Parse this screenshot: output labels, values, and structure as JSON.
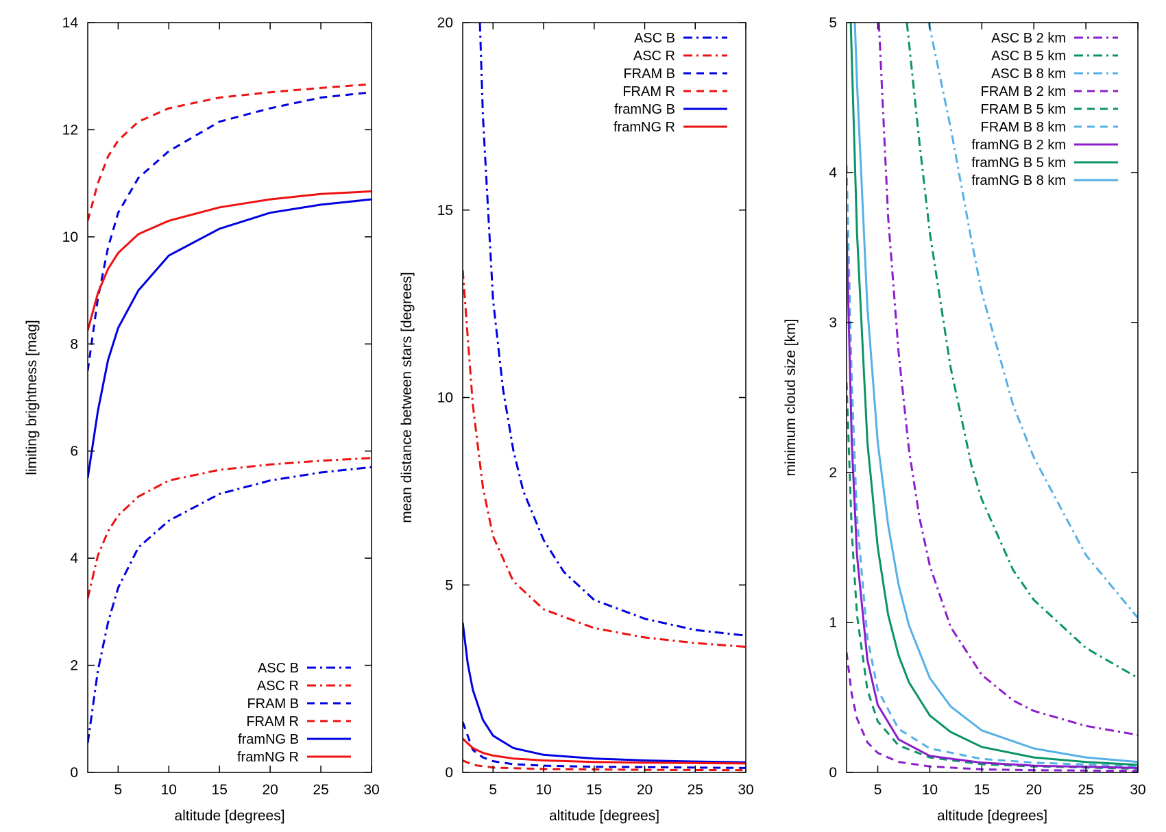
{
  "colors": {
    "blue": "#0000e0",
    "red": "#ee1111",
    "purple": "#8a1ecc",
    "green": "#0a9466",
    "lightblue": "#55b0e6",
    "axis": "#000000"
  },
  "chart_data": [
    {
      "type": "line",
      "title": "",
      "xlabel": "altitude [degrees]",
      "ylabel": "limiting brightness [mag]",
      "xlim": [
        2,
        30
      ],
      "ylim": [
        0,
        14
      ],
      "xticks": [
        5,
        10,
        15,
        20,
        25,
        30
      ],
      "yticks": [
        0,
        2,
        4,
        6,
        8,
        10,
        12,
        14
      ],
      "grid": false,
      "legend_position": "bottom-right",
      "series": [
        {
          "name": "ASC B",
          "color": "blue",
          "dash": "dashdot",
          "points": [
            [
              2,
              0.55
            ],
            [
              3,
              1.9
            ],
            [
              4,
              2.8
            ],
            [
              5,
              3.45
            ],
            [
              7,
              4.2
            ],
            [
              10,
              4.7
            ],
            [
              15,
              5.2
            ],
            [
              20,
              5.45
            ],
            [
              25,
              5.6
            ],
            [
              30,
              5.7
            ]
          ]
        },
        {
          "name": "ASC R",
          "color": "red",
          "dash": "dashdot",
          "points": [
            [
              2,
              3.25
            ],
            [
              3,
              4.05
            ],
            [
              4,
              4.5
            ],
            [
              5,
              4.8
            ],
            [
              7,
              5.15
            ],
            [
              10,
              5.45
            ],
            [
              15,
              5.65
            ],
            [
              20,
              5.75
            ],
            [
              25,
              5.82
            ],
            [
              30,
              5.87
            ]
          ]
        },
        {
          "name": "FRAM B",
          "color": "blue",
          "dash": "dash",
          "points": [
            [
              2,
              7.5
            ],
            [
              3,
              8.85
            ],
            [
              4,
              9.8
            ],
            [
              5,
              10.45
            ],
            [
              7,
              11.1
            ],
            [
              10,
              11.6
            ],
            [
              15,
              12.15
            ],
            [
              20,
              12.4
            ],
            [
              25,
              12.6
            ],
            [
              30,
              12.7
            ]
          ]
        },
        {
          "name": "FRAM R",
          "color": "red",
          "dash": "dash",
          "points": [
            [
              2,
              10.3
            ],
            [
              3,
              11.0
            ],
            [
              4,
              11.5
            ],
            [
              5,
              11.8
            ],
            [
              7,
              12.15
            ],
            [
              10,
              12.4
            ],
            [
              15,
              12.6
            ],
            [
              20,
              12.7
            ],
            [
              25,
              12.78
            ],
            [
              30,
              12.85
            ]
          ]
        },
        {
          "name": "framNG B",
          "color": "blue",
          "dash": "solid",
          "points": [
            [
              2,
              5.5
            ],
            [
              3,
              6.75
            ],
            [
              4,
              7.7
            ],
            [
              5,
              8.3
            ],
            [
              7,
              9.0
            ],
            [
              10,
              9.65
            ],
            [
              15,
              10.15
            ],
            [
              20,
              10.45
            ],
            [
              25,
              10.6
            ],
            [
              30,
              10.7
            ]
          ]
        },
        {
          "name": "framNG R",
          "color": "red",
          "dash": "solid",
          "points": [
            [
              2,
              8.25
            ],
            [
              3,
              8.95
            ],
            [
              4,
              9.4
            ],
            [
              5,
              9.7
            ],
            [
              7,
              10.05
            ],
            [
              10,
              10.3
            ],
            [
              15,
              10.55
            ],
            [
              20,
              10.7
            ],
            [
              25,
              10.8
            ],
            [
              30,
              10.85
            ]
          ]
        }
      ]
    },
    {
      "type": "line",
      "title": "",
      "xlabel": "altitude [degrees]",
      "ylabel": "mean distance between stars [degrees]",
      "xlim": [
        2,
        30
      ],
      "ylim": [
        0,
        20
      ],
      "xticks": [
        5,
        10,
        15,
        20,
        25,
        30
      ],
      "yticks": [
        0,
        5,
        10,
        15,
        20
      ],
      "grid": false,
      "legend_position": "top-right",
      "series": [
        {
          "name": "ASC B",
          "color": "blue",
          "dash": "dashdot",
          "points": [
            [
              3.7,
              20
            ],
            [
              4,
              17.5
            ],
            [
              5,
              12.6
            ],
            [
              6,
              10.2
            ],
            [
              7,
              8.6
            ],
            [
              8,
              7.5
            ],
            [
              10,
              6.2
            ],
            [
              12,
              5.35
            ],
            [
              15,
              4.6
            ],
            [
              20,
              4.1
            ],
            [
              25,
              3.8
            ],
            [
              30,
              3.65
            ]
          ]
        },
        {
          "name": "ASC R",
          "color": "red",
          "dash": "dashdot",
          "points": [
            [
              2,
              13.4
            ],
            [
              3,
              9.8
            ],
            [
              4,
              7.6
            ],
            [
              5,
              6.3
            ],
            [
              7,
              5.1
            ],
            [
              10,
              4.35
            ],
            [
              15,
              3.85
            ],
            [
              20,
              3.6
            ],
            [
              25,
              3.45
            ],
            [
              30,
              3.35
            ]
          ]
        },
        {
          "name": "FRAM B",
          "color": "blue",
          "dash": "dash",
          "points": [
            [
              2,
              1.35
            ],
            [
              3,
              0.6
            ],
            [
              4,
              0.4
            ],
            [
              5,
              0.3
            ],
            [
              7,
              0.22
            ],
            [
              10,
              0.18
            ],
            [
              15,
              0.15
            ],
            [
              20,
              0.14
            ],
            [
              25,
              0.13
            ],
            [
              30,
              0.12
            ]
          ]
        },
        {
          "name": "FRAM R",
          "color": "red",
          "dash": "dash",
          "points": [
            [
              2,
              0.32
            ],
            [
              3,
              0.2
            ],
            [
              5,
              0.13
            ],
            [
              10,
              0.09
            ],
            [
              20,
              0.07
            ],
            [
              30,
              0.06
            ]
          ]
        },
        {
          "name": "framNG B",
          "color": "blue",
          "dash": "solid",
          "points": [
            [
              2,
              4.0
            ],
            [
              2.5,
              2.9
            ],
            [
              3,
              2.2
            ],
            [
              4,
              1.4
            ],
            [
              5,
              0.98
            ],
            [
              7,
              0.65
            ],
            [
              10,
              0.47
            ],
            [
              15,
              0.37
            ],
            [
              20,
              0.32
            ],
            [
              25,
              0.29
            ],
            [
              30,
              0.27
            ]
          ]
        },
        {
          "name": "framNG R",
          "color": "red",
          "dash": "solid",
          "points": [
            [
              2,
              0.9
            ],
            [
              3,
              0.65
            ],
            [
              4,
              0.52
            ],
            [
              5,
              0.45
            ],
            [
              7,
              0.37
            ],
            [
              10,
              0.32
            ],
            [
              15,
              0.28
            ],
            [
              20,
              0.26
            ],
            [
              25,
              0.25
            ],
            [
              30,
              0.24
            ]
          ]
        }
      ]
    },
    {
      "type": "line",
      "title": "",
      "xlabel": "altitude [degrees]",
      "ylabel": "minimum cloud size [km]",
      "xlim": [
        2,
        30
      ],
      "ylim": [
        0,
        5
      ],
      "xticks": [
        5,
        10,
        15,
        20,
        25,
        30
      ],
      "yticks": [
        0,
        1,
        2,
        3,
        4,
        5
      ],
      "grid": false,
      "legend_position": "top-right",
      "series": [
        {
          "name": "ASC B 2 km",
          "color": "purple",
          "dash": "dashdot",
          "points": [
            [
              5.1,
              5
            ],
            [
              6,
              3.7
            ],
            [
              7,
              2.8
            ],
            [
              8,
              2.15
            ],
            [
              9,
              1.7
            ],
            [
              10,
              1.38
            ],
            [
              12,
              0.97
            ],
            [
              15,
              0.65
            ],
            [
              18,
              0.48
            ],
            [
              20,
              0.41
            ],
            [
              25,
              0.31
            ],
            [
              30,
              0.25
            ]
          ]
        },
        {
          "name": "ASC B 5 km",
          "color": "green",
          "dash": "dashdot",
          "points": [
            [
              7.8,
              5
            ],
            [
              9,
              4.2
            ],
            [
              10,
              3.6
            ],
            [
              12,
              2.7
            ],
            [
              14,
              2.05
            ],
            [
              15,
              1.82
            ],
            [
              18,
              1.35
            ],
            [
              20,
              1.15
            ],
            [
              25,
              0.83
            ],
            [
              30,
              0.63
            ]
          ]
        },
        {
          "name": "ASC B 8 km",
          "color": "lightblue",
          "dash": "dashdot",
          "points": [
            [
              9.9,
              5
            ],
            [
              12,
              4.3
            ],
            [
              14,
              3.55
            ],
            [
              15,
              3.2
            ],
            [
              18,
              2.45
            ],
            [
              20,
              2.1
            ],
            [
              25,
              1.45
            ],
            [
              30,
              1.03
            ]
          ]
        },
        {
          "name": "FRAM B 2 km",
          "color": "purple",
          "dash": "dash",
          "points": [
            [
              2,
              0.8
            ],
            [
              2.5,
              0.52
            ],
            [
              3,
              0.36
            ],
            [
              4,
              0.2
            ],
            [
              5,
              0.13
            ],
            [
              7,
              0.07
            ],
            [
              10,
              0.04
            ],
            [
              15,
              0.02
            ],
            [
              20,
              0.015
            ],
            [
              30,
              0.01
            ]
          ]
        },
        {
          "name": "FRAM B 5 km",
          "color": "green",
          "dash": "dash",
          "points": [
            [
              2,
              2.6
            ],
            [
              2.5,
              1.6
            ],
            [
              3,
              1.05
            ],
            [
              4,
              0.55
            ],
            [
              5,
              0.34
            ],
            [
              7,
              0.18
            ],
            [
              10,
              0.1
            ],
            [
              15,
              0.055
            ],
            [
              20,
              0.04
            ],
            [
              30,
              0.025
            ]
          ]
        },
        {
          "name": "FRAM B 8 km",
          "color": "lightblue",
          "dash": "dash",
          "points": [
            [
              2,
              4.05
            ],
            [
              2.5,
              2.6
            ],
            [
              3,
              1.7
            ],
            [
              4,
              0.9
            ],
            [
              5,
              0.55
            ],
            [
              7,
              0.29
            ],
            [
              10,
              0.16
            ],
            [
              15,
              0.09
            ],
            [
              20,
              0.065
            ],
            [
              30,
              0.04
            ]
          ]
        },
        {
          "name": "framNG B 2 km",
          "color": "purple",
          "dash": "solid",
          "points": [
            [
              2,
              3.6
            ],
            [
              2.5,
              2.2
            ],
            [
              3,
              1.45
            ],
            [
              4,
              0.75
            ],
            [
              5,
              0.45
            ],
            [
              7,
              0.22
            ],
            [
              10,
              0.11
            ],
            [
              15,
              0.065
            ],
            [
              20,
              0.045
            ],
            [
              30,
              0.03
            ]
          ]
        },
        {
          "name": "framNG B 5 km",
          "color": "green",
          "dash": "solid",
          "points": [
            [
              2.4,
              5
            ],
            [
              3,
              3.6
            ],
            [
              4,
              2.2
            ],
            [
              5,
              1.5
            ],
            [
              6,
              1.05
            ],
            [
              7,
              0.78
            ],
            [
              8,
              0.6
            ],
            [
              10,
              0.38
            ],
            [
              12,
              0.27
            ],
            [
              15,
              0.17
            ],
            [
              20,
              0.1
            ],
            [
              25,
              0.07
            ],
            [
              30,
              0.05
            ]
          ]
        },
        {
          "name": "framNG B 8 km",
          "color": "lightblue",
          "dash": "solid",
          "points": [
            [
              2.8,
              5
            ],
            [
              3,
              4.6
            ],
            [
              4,
              3.1
            ],
            [
              5,
              2.2
            ],
            [
              6,
              1.65
            ],
            [
              7,
              1.25
            ],
            [
              8,
              0.98
            ],
            [
              10,
              0.63
            ],
            [
              12,
              0.44
            ],
            [
              15,
              0.28
            ],
            [
              20,
              0.16
            ],
            [
              25,
              0.1
            ],
            [
              30,
              0.07
            ]
          ]
        }
      ]
    }
  ]
}
